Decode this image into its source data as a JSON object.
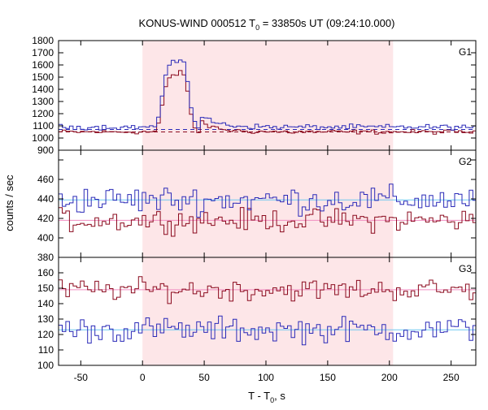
{
  "chart_data": {
    "type": "line",
    "title": "KONUS-WIND 000512 T",
    "title_sub": "0",
    "title_rest": " = 33850s UT (09:24:10.000)",
    "xlabel": "T - T",
    "xlabel_sub": "0",
    "xlabel_rest": ", s",
    "ylabel": "counts / sec",
    "xlim": [
      -68,
      270
    ],
    "x_ticks": [
      -50,
      0,
      50,
      100,
      150,
      200,
      250
    ],
    "x_tick_labels": [
      "-50",
      "0",
      "50",
      "100",
      "150",
      "200",
      "250"
    ],
    "highlight_interval": [
      0,
      203
    ],
    "colors": {
      "highlight": "#fde6e8",
      "series_a": "#2a2ab8",
      "series_b": "#8b0a1e",
      "fit_a": "#6ec8f0",
      "fit_b": "#f08cc0"
    },
    "panels": [
      {
        "label": "G1",
        "ylim": [
          900,
          1800
        ],
        "y_ticks": [
          900,
          1000,
          1100,
          1200,
          1300,
          1400,
          1500,
          1600,
          1700,
          1800
        ],
        "y_tick_labels": [
          "900",
          "1000",
          "1100",
          "1200",
          "1300",
          "1400",
          "1500",
          "1600",
          "1700",
          "1800"
        ],
        "background_levels": [
          1070,
          1050
        ],
        "series": [
          {
            "role": "a",
            "peak": 1655,
            "base": 1090,
            "noise": 18
          },
          {
            "role": "b",
            "peak": 1545,
            "base": 1050,
            "noise": 15
          }
        ]
      },
      {
        "label": "G2",
        "ylim": [
          380,
          490
        ],
        "y_ticks": [
          380,
          400,
          420,
          440,
          460,
          480
        ],
        "y_tick_labels": [
          "380",
          "400",
          "420",
          "440",
          "460",
          "480"
        ],
        "background_levels": [
          439,
          418
        ],
        "series": [
          {
            "role": "a",
            "base": 439,
            "noise": 12
          },
          {
            "role": "b",
            "base": 418,
            "noise": 10
          }
        ]
      },
      {
        "label": "G3",
        "ylim": [
          100,
          170
        ],
        "y_ticks": [
          100,
          110,
          120,
          130,
          140,
          150,
          160,
          170
        ],
        "y_tick_labels": [
          "100",
          "110",
          "120",
          "130",
          "140",
          "150",
          "160",
          "170"
        ],
        "background_levels": [
          123,
          149
        ],
        "series": [
          {
            "role": "a",
            "base": 123,
            "noise": 7
          },
          {
            "role": "b",
            "base": 149,
            "noise": 6
          }
        ]
      }
    ]
  }
}
